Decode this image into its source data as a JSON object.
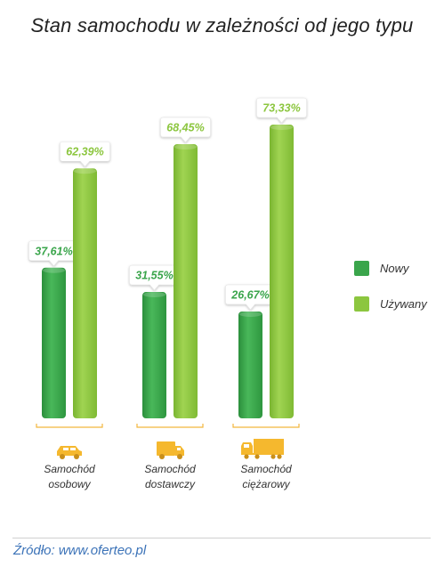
{
  "title": "Stan samochodu w zależności od jego typu",
  "source": "Źródło: www.oferteo.pl",
  "colors": {
    "nowy": "#3aa54b",
    "uzywany": "#8cc63f",
    "icon": "#f5b82e",
    "baseline": "#f2b63d"
  },
  "legend": [
    {
      "name": "Nowy",
      "color": "#3aa54b"
    },
    {
      "name": "Używany",
      "color": "#8cc63f"
    }
  ],
  "categories": [
    {
      "line1": "Samochód",
      "line2": "osobowy",
      "icon": "car-icon"
    },
    {
      "line1": "Samochód",
      "line2": "dostawczy",
      "icon": "van-icon"
    },
    {
      "line1": "Samochód",
      "line2": "ciężarowy",
      "icon": "truck-icon"
    }
  ],
  "chart_data": {
    "type": "bar",
    "title": "Stan samochodu w zależności od jego typu",
    "categories": [
      "Samochód osobowy",
      "Samochód dostawczy",
      "Samochód ciężarowy"
    ],
    "series": [
      {
        "name": "Nowy",
        "values": [
          37.61,
          31.55,
          26.67
        ],
        "labels": [
          "37,61%",
          "31,55%",
          "26,67%"
        ]
      },
      {
        "name": "Używany",
        "values": [
          62.39,
          68.45,
          73.33
        ],
        "labels": [
          "62,39%",
          "68,45%",
          "73,33%"
        ]
      }
    ],
    "ylim": [
      0,
      100
    ],
    "legend_position": "right",
    "grid": false
  }
}
